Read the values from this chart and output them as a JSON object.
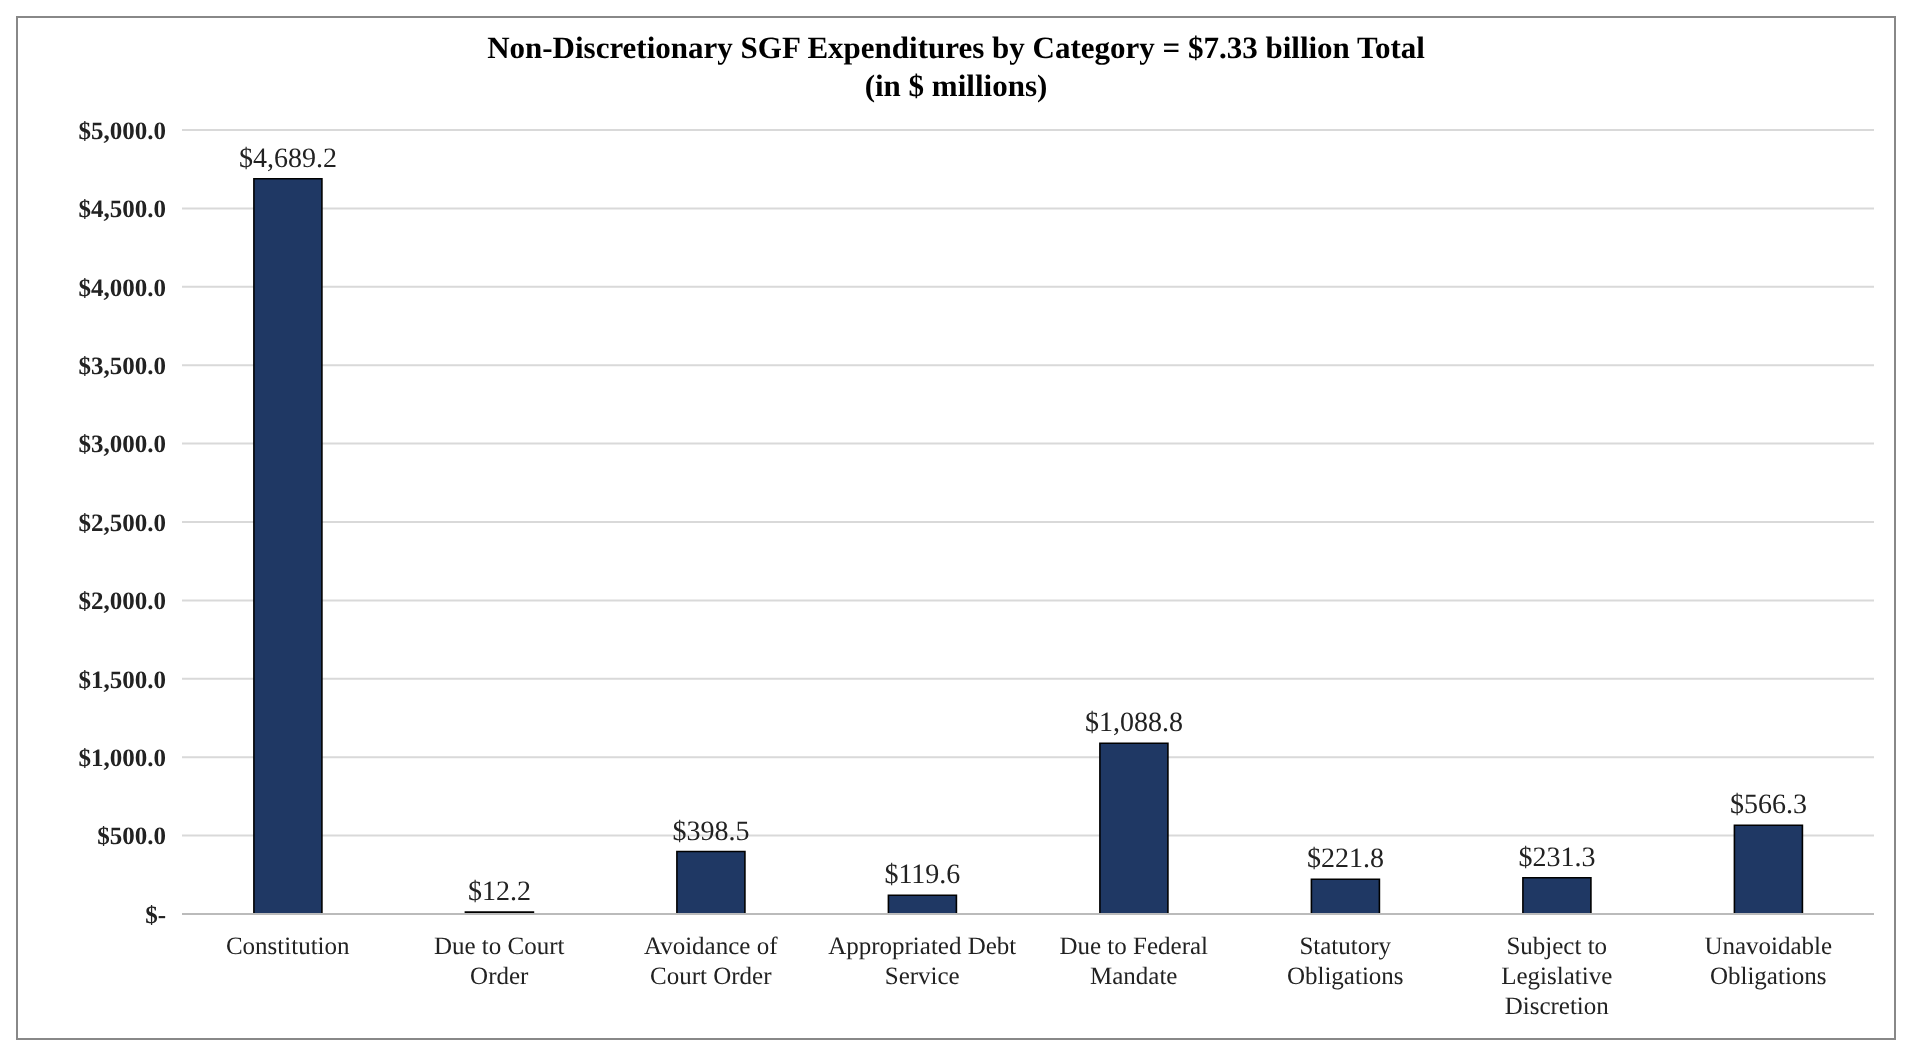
{
  "chart_data": {
    "type": "bar",
    "title": "Non-Discretionary SGF Expenditures by Category = $7.33 billion Total",
    "subtitle": "(in $ millions)",
    "categories": [
      "Constitution",
      "Due to Court Order",
      "Avoidance of Court Order",
      "Appropriated Debt Service",
      "Due to Federal Mandate",
      "Statutory Obligations",
      "Subject to Legislative Discretion",
      "Unavoidable Obligations"
    ],
    "values": [
      4689.2,
      12.2,
      398.5,
      119.6,
      1088.8,
      221.8,
      231.3,
      566.3
    ],
    "value_labels": [
      "$4,689.2",
      "$12.2",
      "$398.5",
      "$119.6",
      "$1,088.8",
      "$221.8",
      "$231.3",
      "$566.3"
    ],
    "color": "#1f3864",
    "ylim": [
      0,
      5000
    ],
    "yticks": [
      {
        "value": 0,
        "label": "$-"
      },
      {
        "value": 500,
        "label": "$500.0"
      },
      {
        "value": 1000,
        "label": "$1,000.0"
      },
      {
        "value": 1500,
        "label": "$1,500.0"
      },
      {
        "value": 2000,
        "label": "$2,000.0"
      },
      {
        "value": 2500,
        "label": "$2,500.0"
      },
      {
        "value": 3000,
        "label": "$3,000.0"
      },
      {
        "value": 3500,
        "label": "$3,500.0"
      },
      {
        "value": 4000,
        "label": "$4,000.0"
      },
      {
        "value": 4500,
        "label": "$4,500.0"
      },
      {
        "value": 5000,
        "label": "$5,000.0"
      }
    ],
    "grid": "y"
  }
}
